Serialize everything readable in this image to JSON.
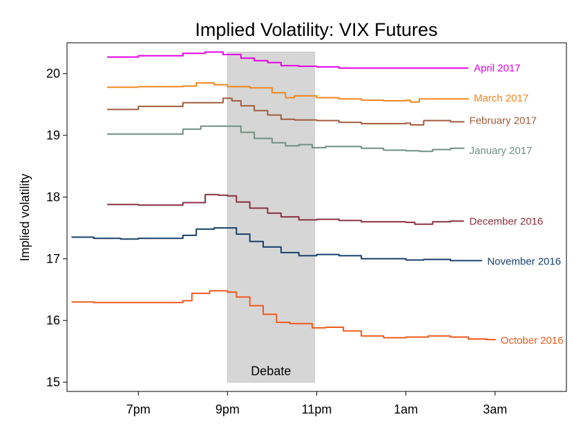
{
  "chart_data": {
    "type": "line",
    "title": "Implied Volatility: VIX Futures",
    "xlabel": "",
    "ylabel": "Implied volatility",
    "x_unit": "hours after 6pm",
    "xlim": [
      -0.6,
      10.6
    ],
    "ylim": [
      14.85,
      20.5
    ],
    "x_ticks": [
      {
        "x": 1,
        "label": "7pm"
      },
      {
        "x": 3,
        "label": "9pm"
      },
      {
        "x": 5,
        "label": "11pm"
      },
      {
        "x": 7,
        "label": "1am"
      },
      {
        "x": 9,
        "label": "3am"
      }
    ],
    "y_ticks": [
      15,
      16,
      17,
      18,
      19,
      20
    ],
    "grid": false,
    "annotations": [
      {
        "type": "shaded_region",
        "x_start": 3.0,
        "x_end": 4.95,
        "y_start": 15.0,
        "y_end": 20.35,
        "label": "Debate"
      }
    ],
    "series": [
      {
        "name": "April 2017",
        "color": "#e600e6",
        "points": [
          [
            0.3,
            20.27
          ],
          [
            1,
            20.29
          ],
          [
            2,
            20.33
          ],
          [
            2.5,
            20.35
          ],
          [
            2.9,
            20.31
          ],
          [
            3.3,
            20.25
          ],
          [
            3.6,
            20.21
          ],
          [
            3.9,
            20.18
          ],
          [
            4.2,
            20.13
          ],
          [
            4.6,
            20.12
          ],
          [
            5,
            20.11
          ],
          [
            5.5,
            20.09
          ],
          [
            6,
            20.09
          ],
          [
            7,
            20.09
          ],
          [
            8,
            20.09
          ],
          [
            8.4,
            20.09
          ]
        ]
      },
      {
        "name": "March 2017",
        "color": "#f28518",
        "points": [
          [
            0.3,
            19.78
          ],
          [
            1,
            19.79
          ],
          [
            2,
            19.8
          ],
          [
            2.3,
            19.85
          ],
          [
            2.7,
            19.82
          ],
          [
            3,
            19.79
          ],
          [
            3.5,
            19.77
          ],
          [
            4,
            19.69
          ],
          [
            4.3,
            19.61
          ],
          [
            4.5,
            19.64
          ],
          [
            5,
            19.61
          ],
          [
            5.5,
            19.59
          ],
          [
            6,
            19.57
          ],
          [
            6.5,
            19.56
          ],
          [
            7,
            19.57
          ],
          [
            7.1,
            19.54
          ],
          [
            7.3,
            19.59
          ],
          [
            7.6,
            19.59
          ],
          [
            8,
            19.59
          ],
          [
            8.4,
            19.58
          ]
        ]
      },
      {
        "name": "February 2017",
        "color": "#a15b3a",
        "points": [
          [
            0.3,
            19.42
          ],
          [
            1,
            19.47
          ],
          [
            2,
            19.53
          ],
          [
            2.9,
            19.6
          ],
          [
            3.1,
            19.56
          ],
          [
            3.3,
            19.48
          ],
          [
            3.6,
            19.4
          ],
          [
            3.9,
            19.33
          ],
          [
            4.2,
            19.26
          ],
          [
            4.5,
            19.25
          ],
          [
            5,
            19.24
          ],
          [
            5.5,
            19.21
          ],
          [
            6,
            19.19
          ],
          [
            7,
            19.2
          ],
          [
            7.1,
            19.17
          ],
          [
            7.4,
            19.24
          ],
          [
            8,
            19.22
          ],
          [
            8.3,
            19.21
          ]
        ]
      },
      {
        "name": "January 2017",
        "color": "#6f8f80",
        "points": [
          [
            0.3,
            19.02
          ],
          [
            1,
            19.02
          ],
          [
            2,
            19.1
          ],
          [
            2.4,
            19.15
          ],
          [
            2.9,
            19.15
          ],
          [
            3.2,
            19.15
          ],
          [
            3.3,
            19.05
          ],
          [
            3.6,
            18.95
          ],
          [
            4,
            18.88
          ],
          [
            4.3,
            18.83
          ],
          [
            4.6,
            18.85
          ],
          [
            4.9,
            18.8
          ],
          [
            5.2,
            18.82
          ],
          [
            5.5,
            18.82
          ],
          [
            6,
            18.79
          ],
          [
            6.5,
            18.76
          ],
          [
            7,
            18.75
          ],
          [
            7.3,
            18.74
          ],
          [
            7.6,
            18.77
          ],
          [
            8,
            18.79
          ],
          [
            8.3,
            18.8
          ]
        ]
      },
      {
        "name": "December 2016",
        "color": "#8a2f3f",
        "points": [
          [
            0.3,
            17.88
          ],
          [
            1,
            17.87
          ],
          [
            2,
            17.91
          ],
          [
            2.5,
            18.04
          ],
          [
            2.8,
            18.03
          ],
          [
            3,
            18.02
          ],
          [
            3.2,
            17.92
          ],
          [
            3.5,
            17.82
          ],
          [
            3.9,
            17.74
          ],
          [
            4.2,
            17.68
          ],
          [
            4.6,
            17.63
          ],
          [
            5,
            17.64
          ],
          [
            5.5,
            17.62
          ],
          [
            6,
            17.6
          ],
          [
            7,
            17.59
          ],
          [
            7.2,
            17.56
          ],
          [
            7.6,
            17.6
          ],
          [
            8,
            17.61
          ],
          [
            8.3,
            17.61
          ]
        ]
      },
      {
        "name": "November 2016",
        "color": "#163f6b",
        "points": [
          [
            -0.5,
            17.35
          ],
          [
            0,
            17.33
          ],
          [
            0.6,
            17.32
          ],
          [
            1,
            17.33
          ],
          [
            2,
            17.38
          ],
          [
            2.3,
            17.48
          ],
          [
            2.7,
            17.5
          ],
          [
            3,
            17.5
          ],
          [
            3.2,
            17.4
          ],
          [
            3.5,
            17.28
          ],
          [
            3.8,
            17.19
          ],
          [
            4.2,
            17.1
          ],
          [
            4.6,
            17.05
          ],
          [
            5,
            17.07
          ],
          [
            5.5,
            17.05
          ],
          [
            6,
            17.0
          ],
          [
            7,
            16.98
          ],
          [
            7.4,
            16.99
          ],
          [
            8,
            16.97
          ],
          [
            8.7,
            16.96
          ]
        ]
      },
      {
        "name": "October 2016",
        "color": "#ef5a1c",
        "points": [
          [
            -0.5,
            16.3
          ],
          [
            0,
            16.29
          ],
          [
            1,
            16.29
          ],
          [
            2,
            16.32
          ],
          [
            2.2,
            16.44
          ],
          [
            2.6,
            16.48
          ],
          [
            3,
            16.46
          ],
          [
            3.2,
            16.38
          ],
          [
            3.5,
            16.24
          ],
          [
            3.8,
            16.1
          ],
          [
            4.1,
            15.97
          ],
          [
            4.4,
            15.95
          ],
          [
            4.6,
            15.95
          ],
          [
            4.9,
            15.88
          ],
          [
            5.2,
            15.89
          ],
          [
            5.6,
            15.83
          ],
          [
            6,
            15.75
          ],
          [
            6.5,
            15.72
          ],
          [
            7,
            15.73
          ],
          [
            7.5,
            15.75
          ],
          [
            8,
            15.73
          ],
          [
            8.4,
            15.7
          ],
          [
            8.8,
            15.69
          ],
          [
            9,
            15.68
          ]
        ]
      }
    ]
  }
}
